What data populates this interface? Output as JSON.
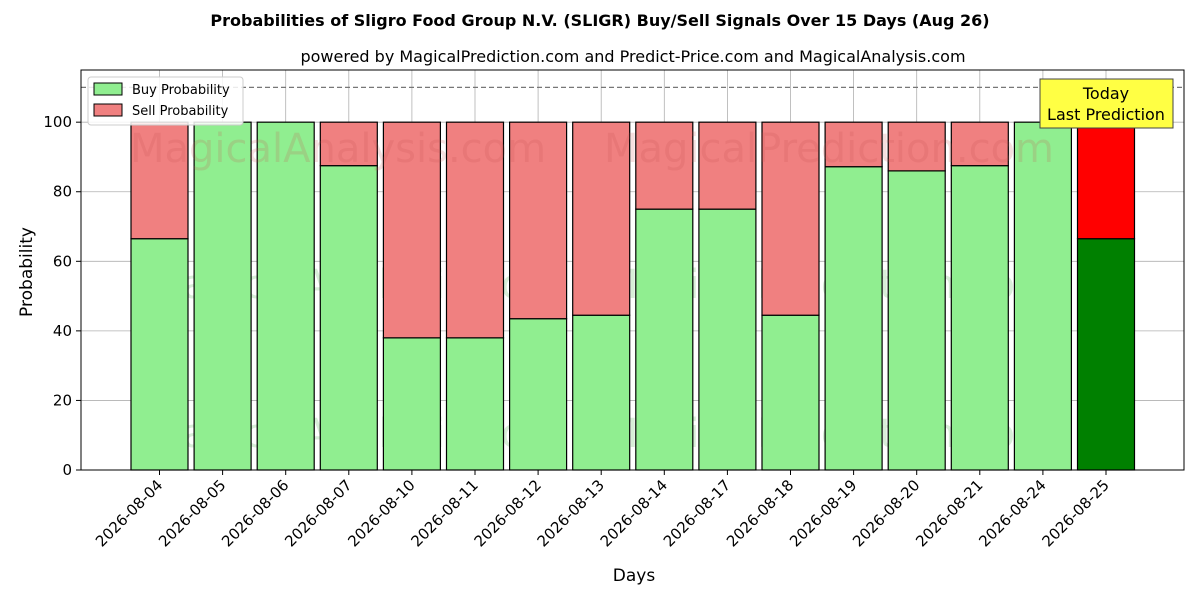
{
  "chart_data": {
    "type": "bar",
    "stacked": true,
    "title": "Probabilities of Sligro Food Group N.V. (SLIGR) Buy/Sell Signals Over 15 Days (Aug 26)",
    "subtitle": "powered by MagicalPrediction.com and Predict-Price.com and MagicalAnalysis.com",
    "xlabel": "Days",
    "ylabel": "Probability",
    "ylim": [
      0,
      115
    ],
    "yticks": [
      0,
      20,
      40,
      60,
      80,
      100
    ],
    "reference_line": 110,
    "grid": true,
    "legend_placement": "top-left",
    "categories": [
      "2026-08-04",
      "2026-08-05",
      "2026-08-06",
      "2026-08-07",
      "2026-08-10",
      "2026-08-11",
      "2026-08-12",
      "2026-08-13",
      "2026-08-14",
      "2026-08-17",
      "2026-08-18",
      "2026-08-19",
      "2026-08-20",
      "2026-08-21",
      "2026-08-24",
      "2026-08-25"
    ],
    "series": [
      {
        "name": "Buy Probability",
        "color": "#90ee90",
        "highlight_color": "#008000",
        "values": [
          66.5,
          100,
          100,
          87.5,
          38,
          38,
          43.5,
          44.5,
          75,
          75,
          44.5,
          87.2,
          86,
          87.5,
          100,
          66.5
        ]
      },
      {
        "name": "Sell Probability",
        "color": "#f08080",
        "highlight_color": "#ff0000",
        "values": [
          33.5,
          0,
          0,
          12.5,
          62,
          62,
          56.5,
          55.5,
          25,
          25,
          55.5,
          12.8,
          14,
          12.5,
          0,
          33.5
        ]
      }
    ],
    "highlight_index": 15,
    "annotation": {
      "line1": "Today",
      "line2": "Last Prediction",
      "color": "#ffff44"
    },
    "watermarks": [
      "MagicalAnalysis.com",
      "MagicalPrediction.com"
    ]
  }
}
